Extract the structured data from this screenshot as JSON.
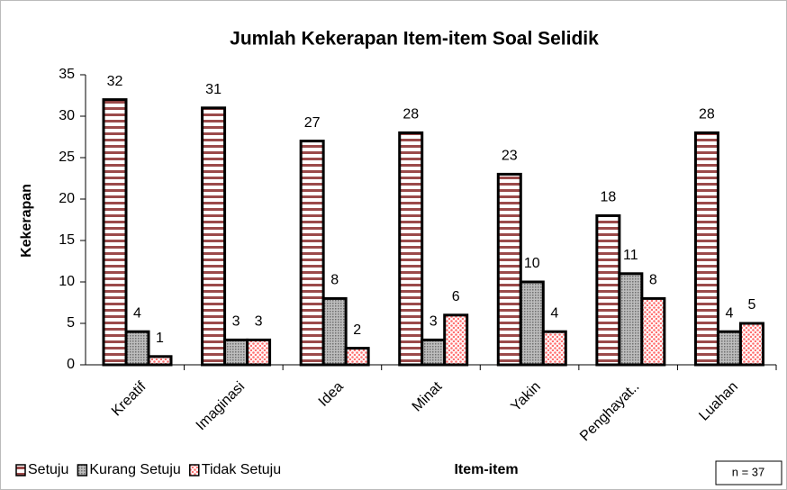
{
  "chart_data": {
    "type": "bar",
    "title": "Jumlah Kekerapan Item-item Soal Selidik",
    "y_label": "Kekerapan",
    "x_label": "Item-item",
    "annotation": "n = 37",
    "categories": [
      "Kreatif",
      "Imaginasi",
      "Idea",
      "Minat",
      "Yakin",
      "Penghayat..",
      "Luahan"
    ],
    "series": [
      {
        "name": "Setuju",
        "color": "#9b4a4a",
        "values": [
          32,
          31,
          27,
          28,
          23,
          18,
          28
        ]
      },
      {
        "name": "Kurang Setuju",
        "color": "#8c8c8c",
        "values": [
          4,
          3,
          8,
          3,
          10,
          11,
          4
        ]
      },
      {
        "name": "Tidak Setuju",
        "color": "#ff8080",
        "values": [
          1,
          3,
          2,
          6,
          4,
          8,
          5
        ]
      }
    ],
    "ylim": [
      0,
      35
    ],
    "yticks": [
      0,
      5,
      10,
      15,
      20,
      25,
      30,
      35
    ],
    "legend": "bottom-left",
    "grid": false
  }
}
